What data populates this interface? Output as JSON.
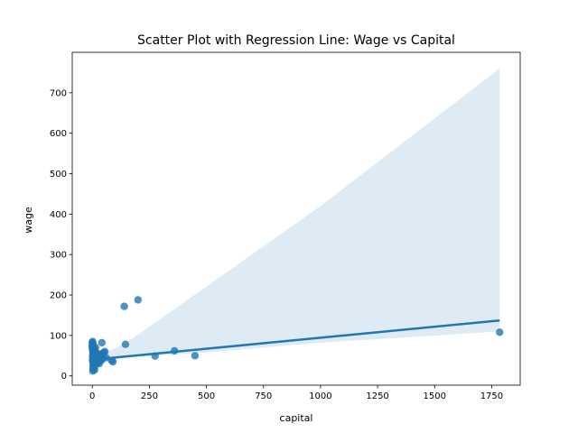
{
  "chart_data": {
    "type": "scatter",
    "title": "Scatter Plot with Regression Line: Wage vs Capital",
    "xlabel": "capital",
    "ylabel": "wage",
    "xlim": [
      -88,
      1875
    ],
    "ylim": [
      -23,
      800
    ],
    "xticks": [
      0,
      250,
      500,
      750,
      1000,
      1250,
      1500,
      1750
    ],
    "yticks": [
      0,
      100,
      200,
      300,
      400,
      500,
      600,
      700
    ],
    "grid": false,
    "legend": "none",
    "point_color": "#1f77b4",
    "line_color": "#1f77b4",
    "band_color": "#1f77b4",
    "regression": {
      "x": [
        0,
        1785
      ],
      "y": [
        40,
        137
      ]
    },
    "confidence_band": {
      "x": [
        0,
        150,
        500,
        1000,
        1785
      ],
      "upper": [
        42,
        82,
        221,
        420,
        760
      ],
      "lower": [
        38,
        45,
        58,
        82,
        110
      ]
    },
    "points": {
      "x": [
        1785,
        450,
        360,
        275,
        200,
        140,
        145,
        90,
        85,
        60,
        55,
        45,
        42,
        40,
        38,
        35,
        32,
        30,
        28,
        25,
        22,
        20,
        18,
        15,
        14,
        12,
        10,
        9,
        8,
        7,
        6,
        5,
        5,
        4,
        3,
        3,
        2,
        2,
        1,
        1,
        0,
        0,
        0,
        1,
        2,
        3,
        4,
        6,
        8,
        10,
        12,
        15,
        18,
        20,
        22,
        25,
        28,
        30,
        35,
        40,
        45,
        50,
        2,
        3,
        5,
        1,
        4,
        6,
        8,
        11,
        13,
        16
      ],
      "y": [
        108,
        50,
        62,
        49,
        188,
        172,
        78,
        35,
        38,
        45,
        60,
        55,
        82,
        42,
        50,
        38,
        45,
        30,
        40,
        55,
        48,
        35,
        50,
        45,
        70,
        40,
        55,
        35,
        50,
        45,
        65,
        40,
        30,
        55,
        45,
        25,
        60,
        35,
        50,
        40,
        82,
        75,
        68,
        72,
        80,
        62,
        58,
        20,
        25,
        15,
        30,
        28,
        38,
        42,
        36,
        33,
        48,
        52,
        47,
        39,
        44,
        58,
        12,
        18,
        22,
        85,
        77,
        70,
        66,
        60,
        53,
        46
      ]
    }
  }
}
